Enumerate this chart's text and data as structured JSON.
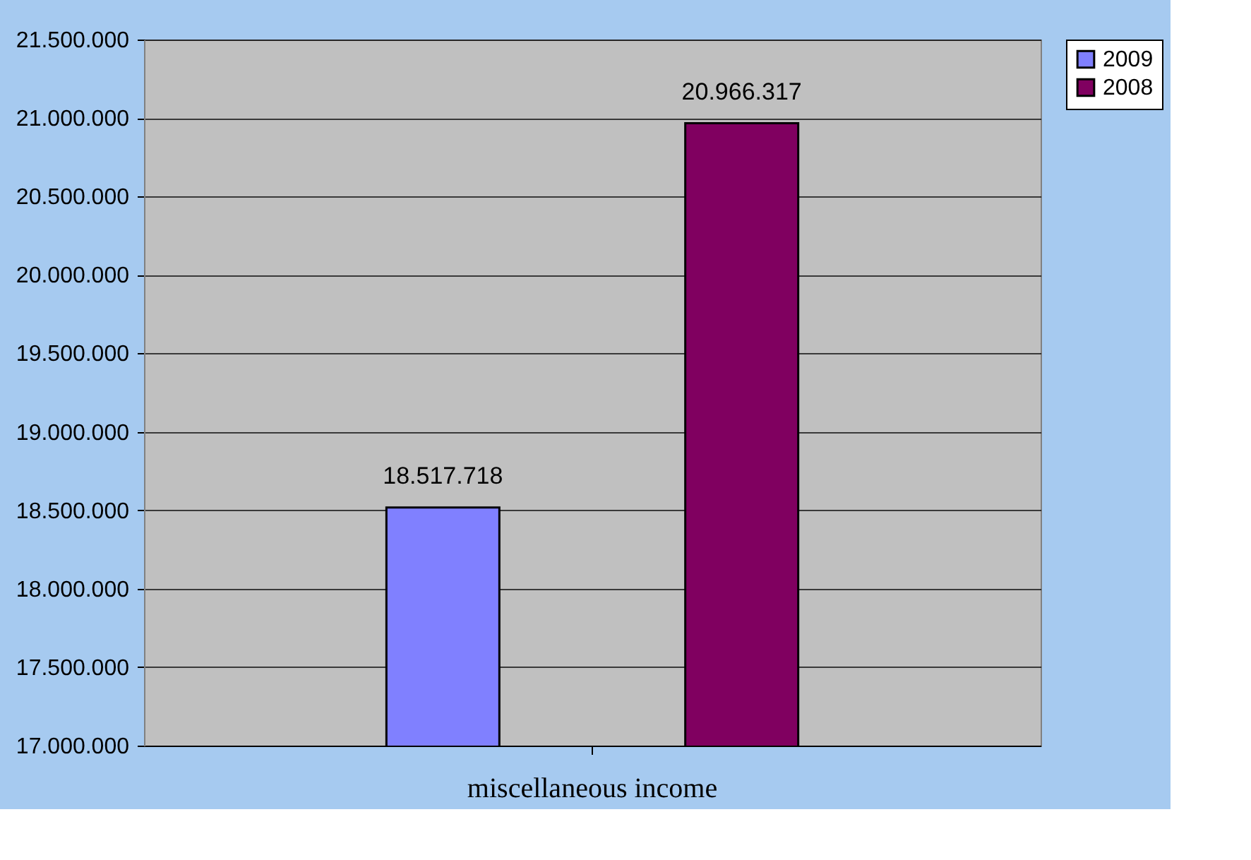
{
  "chart_data": {
    "type": "bar",
    "categories": [
      "miscellaneous income"
    ],
    "series": [
      {
        "name": "2009",
        "color": "#8080ff",
        "values": [
          18517718
        ],
        "value_labels": [
          "18.517.718"
        ]
      },
      {
        "name": "2008",
        "color": "#800060",
        "values": [
          20966317
        ],
        "value_labels": [
          "20.966.317"
        ]
      }
    ],
    "ylim": [
      17000000,
      21500000
    ],
    "yticks": [
      {
        "value": 17000000,
        "label": "17.000.000"
      },
      {
        "value": 17500000,
        "label": "17.500.000"
      },
      {
        "value": 18000000,
        "label": "18.000.000"
      },
      {
        "value": 18500000,
        "label": "18.500.000"
      },
      {
        "value": 19000000,
        "label": "19.000.000"
      },
      {
        "value": 19500000,
        "label": "19.500.000"
      },
      {
        "value": 20000000,
        "label": "20.000.000"
      },
      {
        "value": 20500000,
        "label": "20.500.000"
      },
      {
        "value": 21000000,
        "label": "21.000.000"
      },
      {
        "value": 21500000,
        "label": "21.500.000"
      }
    ],
    "grid": "y",
    "legend": "right"
  }
}
